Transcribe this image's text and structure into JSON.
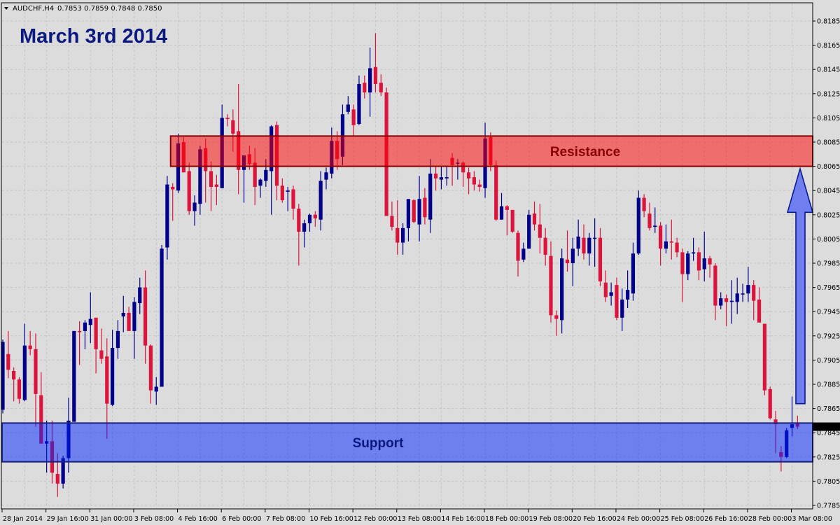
{
  "header": {
    "symbol": "AUDCHF,H4",
    "ohlc": "0.7853 0.7859 0.7848 0.7850"
  },
  "annotation_title": "March 3rd 2014",
  "colors": {
    "background": "#dcdcdc",
    "bull": "#00008b",
    "bear": "#dc143c",
    "resistance_fill": "#ff0000",
    "resistance_border": "#8b0000",
    "support_fill": "#0022ff",
    "support_border": "#1a237e",
    "arrow_fill": "#6f7fef",
    "arrow_border": "#0a1a90"
  },
  "chart_data": {
    "type": "candlestick",
    "symbol": "AUDCHF",
    "timeframe": "H4",
    "ylim": [
      0.7785,
      0.8185
    ],
    "yticks": [
      "0.8185",
      "0.8165",
      "0.8145",
      "0.8125",
      "0.8105",
      "0.8085",
      "0.8065",
      "0.8045",
      "0.8025",
      "0.8005",
      "0.7985",
      "0.7965",
      "0.7945",
      "0.7925",
      "0.7905",
      "0.7885",
      "0.7865",
      "0.7845",
      "0.7825",
      "0.7805",
      "0.7785"
    ],
    "xtick_every_bars": 8,
    "xticks": [
      "28 Jan 2014",
      "29 Jan 16:00",
      "31 Jan 00:00",
      "3 Feb 08:00",
      "4 Feb 16:00",
      "6 Feb 00:00",
      "7 Feb 08:00",
      "10 Feb 16:00",
      "12 Feb 00:00",
      "13 Feb 08:00",
      "14 Feb 16:00",
      "18 Feb 00:00",
      "19 Feb 08:00",
      "20 Feb 16:00",
      "24 Feb 00:00",
      "25 Feb 08:00",
      "26 Feb 16:00",
      "28 Feb 00:00",
      "3 Mar 08:00"
    ],
    "grid": true,
    "current_price": "0.7850",
    "ohlc_fields": [
      "open",
      "high",
      "low",
      "close"
    ],
    "candles": [
      [
        0.7864,
        0.7922,
        0.7861,
        0.792
      ],
      [
        0.791,
        0.7929,
        0.789,
        0.7897
      ],
      [
        0.7896,
        0.7899,
        0.7871,
        0.7889
      ],
      [
        0.7889,
        0.7891,
        0.7869,
        0.7873
      ],
      [
        0.7872,
        0.7935,
        0.7871,
        0.7917
      ],
      [
        0.7917,
        0.7929,
        0.7909,
        0.7914
      ],
      [
        0.7914,
        0.7927,
        0.785,
        0.7877
      ],
      [
        0.7876,
        0.7895,
        0.7836,
        0.7836
      ],
      [
        0.7836,
        0.7855,
        0.7812,
        0.7838
      ],
      [
        0.7838,
        0.7855,
        0.7803,
        0.7812
      ],
      [
        0.7811,
        0.7828,
        0.7792,
        0.7803
      ],
      [
        0.7803,
        0.7826,
        0.7799,
        0.7824
      ],
      [
        0.7824,
        0.7874,
        0.7812,
        0.7855
      ],
      [
        0.7854,
        0.7929,
        0.7854,
        0.7929
      ],
      [
        0.7929,
        0.7937,
        0.7901,
        0.7928
      ],
      [
        0.7929,
        0.7938,
        0.7914,
        0.7936
      ],
      [
        0.7934,
        0.7961,
        0.7919,
        0.7939
      ],
      [
        0.794,
        0.794,
        0.7894,
        0.7914
      ],
      [
        0.7913,
        0.7931,
        0.7902,
        0.7906
      ],
      [
        0.7908,
        0.7923,
        0.784,
        0.7869
      ],
      [
        0.7868,
        0.793,
        0.7867,
        0.7915
      ],
      [
        0.7915,
        0.7938,
        0.7906,
        0.7929
      ],
      [
        0.7941,
        0.7958,
        0.7928,
        0.7944
      ],
      [
        0.7944,
        0.7949,
        0.7929,
        0.7929
      ],
      [
        0.7929,
        0.7957,
        0.7906,
        0.7953
      ],
      [
        0.7952,
        0.7973,
        0.7943,
        0.7965
      ],
      [
        0.7965,
        0.7979,
        0.7902,
        0.7917
      ],
      [
        0.7917,
        0.7918,
        0.7869,
        0.788
      ],
      [
        0.7879,
        0.7891,
        0.7868,
        0.7883
      ],
      [
        0.7883,
        0.8,
        0.7883,
        0.7997
      ],
      [
        0.7998,
        0.8057,
        0.7988,
        0.805
      ],
      [
        0.8048,
        0.8051,
        0.802,
        0.8046
      ],
      [
        0.8045,
        0.8092,
        0.8043,
        0.8084
      ],
      [
        0.8085,
        0.8089,
        0.806,
        0.806
      ],
      [
        0.8061,
        0.8068,
        0.8025,
        0.8028
      ],
      [
        0.8028,
        0.8041,
        0.8016,
        0.8035
      ],
      [
        0.8034,
        0.8082,
        0.8025,
        0.8079
      ],
      [
        0.808,
        0.8088,
        0.8035,
        0.8061
      ],
      [
        0.8061,
        0.8069,
        0.8028,
        0.8048
      ],
      [
        0.805,
        0.8058,
        0.8033,
        0.8048
      ],
      [
        0.8047,
        0.8116,
        0.8047,
        0.8105
      ],
      [
        0.8105,
        0.8108,
        0.8098,
        0.8104
      ],
      [
        0.8103,
        0.8112,
        0.8077,
        0.8092
      ],
      [
        0.8094,
        0.8133,
        0.8042,
        0.8062
      ],
      [
        0.8062,
        0.8074,
        0.8035,
        0.8074
      ],
      [
        0.8075,
        0.8082,
        0.8062,
        0.8067
      ],
      [
        0.8068,
        0.808,
        0.8033,
        0.8048
      ],
      [
        0.8049,
        0.8055,
        0.8039,
        0.8054
      ],
      [
        0.8053,
        0.8071,
        0.8048,
        0.8062
      ],
      [
        0.8061,
        0.8099,
        0.8025,
        0.8098
      ],
      [
        0.8099,
        0.8102,
        0.8037,
        0.8049
      ],
      [
        0.8049,
        0.8055,
        0.8035,
        0.8037
      ],
      [
        0.8044,
        0.8048,
        0.8028,
        0.8045
      ],
      [
        0.8046,
        0.8049,
        0.8021,
        0.803
      ],
      [
        0.803,
        0.8034,
        0.7983,
        0.8011
      ],
      [
        0.8011,
        0.8021,
        0.7998,
        0.8018
      ],
      [
        0.8018,
        0.8026,
        0.8011,
        0.8025
      ],
      [
        0.8025,
        0.8028,
        0.8015,
        0.8022
      ],
      [
        0.8021,
        0.8061,
        0.8012,
        0.8053
      ],
      [
        0.8054,
        0.8064,
        0.8046,
        0.806
      ],
      [
        0.8059,
        0.8097,
        0.8055,
        0.8086
      ],
      [
        0.8086,
        0.8094,
        0.8062,
        0.8071
      ],
      [
        0.8073,
        0.8116,
        0.8066,
        0.8108
      ],
      [
        0.811,
        0.8123,
        0.8108,
        0.8116
      ],
      [
        0.8112,
        0.8116,
        0.809,
        0.8099
      ],
      [
        0.81,
        0.814,
        0.8099,
        0.8133
      ],
      [
        0.8134,
        0.814,
        0.8121,
        0.8126
      ],
      [
        0.8126,
        0.8163,
        0.8106,
        0.8146
      ],
      [
        0.8147,
        0.8175,
        0.8126,
        0.8133
      ],
      [
        0.8134,
        0.8141,
        0.8123,
        0.8126
      ],
      [
        0.8126,
        0.813,
        0.8024,
        0.8024
      ],
      [
        0.8024,
        0.8036,
        0.8012,
        0.8015
      ],
      [
        0.8014,
        0.8037,
        0.7992,
        0.8002
      ],
      [
        0.8002,
        0.8018,
        0.7992,
        0.8014
      ],
      [
        0.8014,
        0.8038,
        0.8003,
        0.8038
      ],
      [
        0.8037,
        0.8038,
        0.8018,
        0.8019
      ],
      [
        0.8017,
        0.8057,
        0.8003,
        0.8038
      ],
      [
        0.8039,
        0.8047,
        0.8017,
        0.8023
      ],
      [
        0.8021,
        0.8071,
        0.801,
        0.8059
      ],
      [
        0.8059,
        0.8065,
        0.8045,
        0.8055
      ],
      [
        0.8054,
        0.8065,
        0.8046,
        0.8056
      ],
      [
        0.8055,
        0.8065,
        0.8049,
        0.8056
      ],
      [
        0.8072,
        0.8076,
        0.8049,
        0.8066
      ],
      [
        0.8068,
        0.8071,
        0.8054,
        0.8068
      ],
      [
        0.8068,
        0.8069,
        0.8048,
        0.806
      ],
      [
        0.806,
        0.8064,
        0.8042,
        0.8055
      ],
      [
        0.8056,
        0.8061,
        0.8045,
        0.805
      ],
      [
        0.805,
        0.8054,
        0.8044,
        0.8048
      ],
      [
        0.8047,
        0.8101,
        0.8039,
        0.8088
      ],
      [
        0.8089,
        0.8093,
        0.8061,
        0.8066
      ],
      [
        0.8066,
        0.807,
        0.802,
        0.8021
      ],
      [
        0.8021,
        0.8043,
        0.8021,
        0.8032
      ],
      [
        0.8032,
        0.8033,
        0.8008,
        0.8029
      ],
      [
        0.8029,
        0.8029,
        0.801,
        0.8011
      ],
      [
        0.801,
        0.8012,
        0.7974,
        0.7987
      ],
      [
        0.7988,
        0.8002,
        0.7986,
        0.7997
      ],
      [
        0.7997,
        0.8029,
        0.7997,
        0.8025
      ],
      [
        0.8026,
        0.8036,
        0.8012,
        0.8017
      ],
      [
        0.8017,
        0.8034,
        0.7993,
        0.8006
      ],
      [
        0.8006,
        0.8014,
        0.7983,
        0.7992
      ],
      [
        0.7991,
        0.8003,
        0.7936,
        0.7942
      ],
      [
        0.7942,
        0.7946,
        0.7925,
        0.7939
      ],
      [
        0.7938,
        0.7997,
        0.7927,
        0.7989
      ],
      [
        0.7988,
        0.8012,
        0.7978,
        0.7985
      ],
      [
        0.7985,
        0.8006,
        0.7966,
        0.7997
      ],
      [
        0.7997,
        0.8021,
        0.7991,
        0.8007
      ],
      [
        0.8006,
        0.8017,
        0.7988,
        0.7993
      ],
      [
        0.7993,
        0.801,
        0.7983,
        0.8006
      ],
      [
        0.8006,
        0.8022,
        0.7982,
        0.8006
      ],
      [
        0.8006,
        0.8014,
        0.7966,
        0.797
      ],
      [
        0.7969,
        0.7979,
        0.7953,
        0.7957
      ],
      [
        0.7958,
        0.7969,
        0.795,
        0.7961
      ],
      [
        0.7967,
        0.7973,
        0.7938,
        0.794
      ],
      [
        0.794,
        0.7964,
        0.7929,
        0.7955
      ],
      [
        0.7955,
        0.7979,
        0.7948,
        0.7963
      ],
      [
        0.796,
        0.8002,
        0.7954,
        0.7993
      ],
      [
        0.7993,
        0.8045,
        0.7992,
        0.8039
      ],
      [
        0.8039,
        0.8042,
        0.8023,
        0.8028
      ],
      [
        0.8026,
        0.8035,
        0.8012,
        0.8014
      ],
      [
        0.8015,
        0.8031,
        0.801,
        0.8016
      ],
      [
        0.8016,
        0.8019,
        0.7983,
        0.7997
      ],
      [
        0.7997,
        0.8017,
        0.7993,
        0.8003
      ],
      [
        0.8003,
        0.8021,
        0.7988,
        0.8002
      ],
      [
        0.8002,
        0.8006,
        0.799,
        0.7994
      ],
      [
        0.7994,
        0.7997,
        0.7953,
        0.7976
      ],
      [
        0.7976,
        0.7995,
        0.7971,
        0.7993
      ],
      [
        0.7993,
        0.8006,
        0.7987,
        0.7994
      ],
      [
        0.7994,
        0.7998,
        0.7971,
        0.7979
      ],
      [
        0.798,
        0.8011,
        0.797,
        0.7989
      ],
      [
        0.7989,
        0.7991,
        0.7973,
        0.7984
      ],
      [
        0.7983,
        0.7985,
        0.7938,
        0.795
      ],
      [
        0.795,
        0.7961,
        0.7947,
        0.7956
      ],
      [
        0.7956,
        0.7959,
        0.7933,
        0.7953
      ],
      [
        0.7953,
        0.7971,
        0.7935,
        0.7954
      ],
      [
        0.7953,
        0.7973,
        0.7943,
        0.796
      ],
      [
        0.796,
        0.7968,
        0.7953,
        0.796
      ],
      [
        0.796,
        0.7982,
        0.7953,
        0.7967
      ],
      [
        0.7967,
        0.7971,
        0.7938,
        0.7954
      ],
      [
        0.7955,
        0.7965,
        0.7936,
        0.7936
      ],
      [
        0.7935,
        0.7935,
        0.7876,
        0.788
      ],
      [
        0.7881,
        0.7883,
        0.7856,
        0.7857
      ],
      [
        0.7856,
        0.7863,
        0.7828,
        0.7852
      ],
      [
        0.7829,
        0.7834,
        0.7813,
        0.7825
      ],
      [
        0.7825,
        0.7849,
        0.7824,
        0.7847
      ],
      [
        0.7849,
        0.7875,
        0.7842,
        0.7852
      ],
      [
        0.7853,
        0.7859,
        0.7848,
        0.785
      ]
    ],
    "zones": {
      "resistance": {
        "label": "Resistance",
        "top": 0.809,
        "bottom": 0.8065
      },
      "support": {
        "label": "Support",
        "top": 0.7853,
        "bottom": 0.7821
      }
    },
    "arrow": {
      "direction": "up"
    }
  }
}
